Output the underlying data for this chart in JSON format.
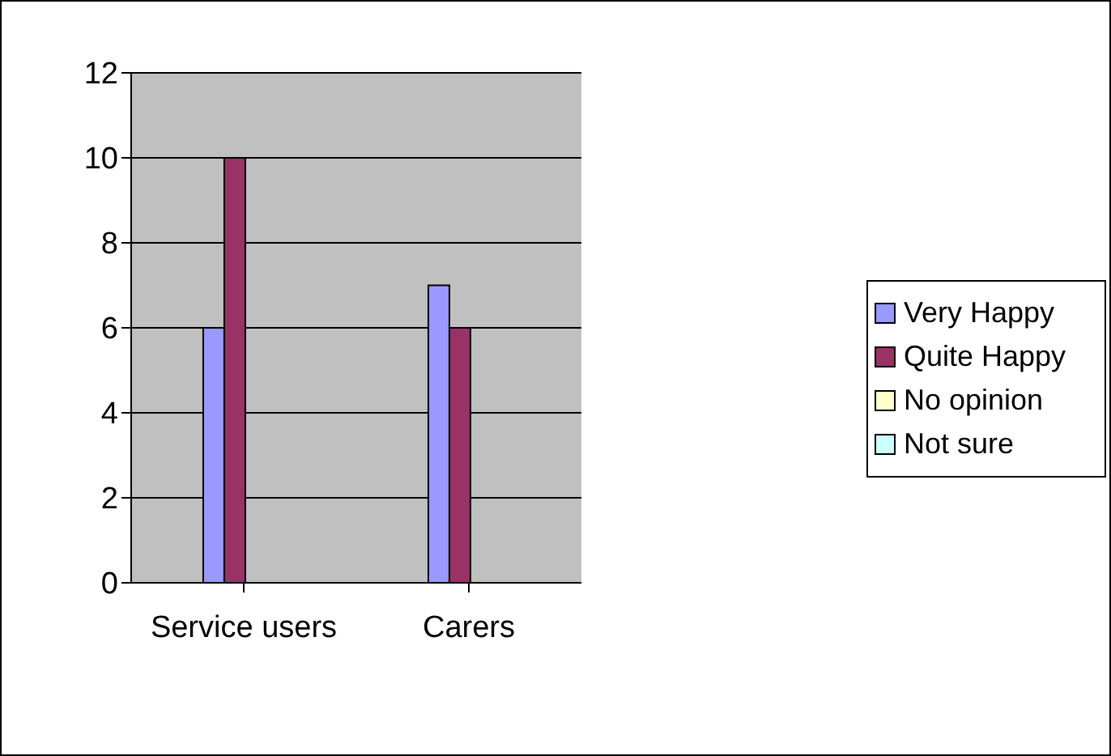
{
  "chart_data": {
    "type": "bar",
    "categories": [
      "Service users",
      "Carers"
    ],
    "series": [
      {
        "name": "Very Happy",
        "color": "#9999ff",
        "values": [
          6,
          7
        ]
      },
      {
        "name": "Quite Happy",
        "color": "#993366",
        "values": [
          10,
          6
        ]
      },
      {
        "name": "No opinion",
        "color": "#ffffcc",
        "values": [
          0,
          0
        ]
      },
      {
        "name": "Not sure",
        "color": "#ccffff",
        "values": [
          0,
          0
        ]
      }
    ],
    "ylim": [
      0,
      12
    ],
    "yticks": [
      0,
      2,
      4,
      6,
      8,
      10,
      12
    ],
    "grid": "y",
    "legend": "right"
  }
}
